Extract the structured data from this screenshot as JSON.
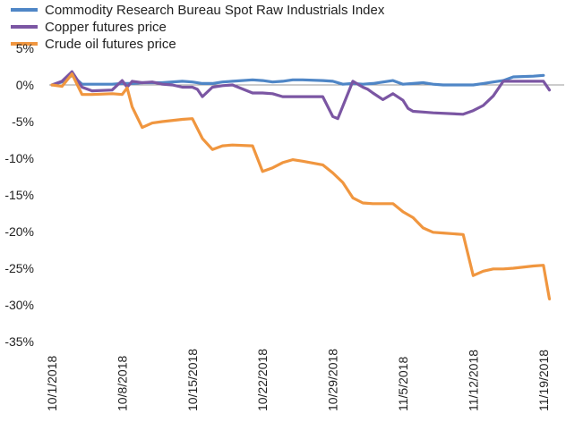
{
  "chart_data": {
    "type": "line",
    "title": "",
    "xlabel": "",
    "ylabel": "",
    "ylim": [
      -35,
      5
    ],
    "y_ticks": [
      5,
      0,
      -5,
      -10,
      -15,
      -20,
      -25,
      -30,
      -35
    ],
    "y_tick_labels": [
      "5%",
      "0%",
      "-5%",
      "-10%",
      "-15%",
      "-20%",
      "-25%",
      "-30%",
      "-35%"
    ],
    "x_tick_labels": [
      "10/1/2018",
      "10/8/2018",
      "10/15/2018",
      "10/22/2018",
      "10/29/2018",
      "11/5/2018",
      "11/12/2018",
      "11/19/2018"
    ],
    "x_tick_days": [
      0,
      7,
      14,
      21,
      28,
      35,
      42,
      49
    ],
    "x_range_days": [
      0,
      51.2
    ],
    "legend_position": "top-left",
    "gridlines": false,
    "series": [
      {
        "name": "Commodity Research Bureau Spot Raw Industrials Index",
        "color": "#4f86c6",
        "x": [
          0,
          1,
          2,
          3,
          4,
          6,
          7,
          8,
          9,
          10,
          11,
          13,
          14,
          15,
          16,
          17,
          18,
          20,
          21,
          22,
          23,
          24,
          25,
          27,
          28,
          29,
          30,
          31,
          32,
          34,
          35,
          36,
          37,
          38,
          39,
          41,
          42,
          43,
          44,
          45,
          46,
          48,
          49
        ],
        "y": [
          0,
          0.4,
          1.3,
          0.1,
          0.1,
          0.1,
          0.2,
          0.2,
          0.3,
          0.3,
          0.3,
          0.5,
          0.4,
          0.2,
          0.2,
          0.4,
          0.5,
          0.7,
          0.6,
          0.4,
          0.5,
          0.7,
          0.7,
          0.6,
          0.5,
          0.1,
          0.2,
          0.1,
          0.2,
          0.6,
          0.1,
          0.2,
          0.3,
          0.1,
          0,
          0,
          0,
          0.2,
          0.4,
          0.6,
          1.1,
          1.2,
          1.3
        ]
      },
      {
        "name": "Copper futures price",
        "color": "#7b56a3",
        "x": [
          0,
          1,
          2,
          3,
          4,
          6,
          7,
          7.5,
          8,
          9,
          10,
          11,
          12,
          13,
          14,
          14.5,
          15,
          16,
          17,
          18,
          20,
          21,
          22,
          23,
          24,
          25,
          27,
          28,
          28.5,
          29,
          30,
          31,
          31.5,
          32,
          33,
          34,
          35,
          35.5,
          36,
          37,
          38,
          41,
          42,
          43,
          44,
          45,
          46,
          48,
          49,
          49.6
        ],
        "y": [
          0,
          0.5,
          1.8,
          -0.3,
          -0.8,
          -0.7,
          0.6,
          -0.3,
          0.5,
          0.3,
          0.4,
          0.1,
          0,
          -0.3,
          -0.3,
          -0.6,
          -1.6,
          -0.3,
          -0.1,
          0,
          -1.1,
          -1.1,
          -1.2,
          -1.6,
          -1.6,
          -1.6,
          -1.6,
          -4.3,
          -4.6,
          -2.9,
          0.5,
          -0.3,
          -0.6,
          -1.1,
          -2,
          -1.2,
          -2.1,
          -3.2,
          -3.6,
          -3.7,
          -3.8,
          -4,
          -3.5,
          -2.8,
          -1.5,
          0.5,
          0.5,
          0.5,
          0.5,
          -0.7
        ]
      },
      {
        "name": "Crude oil futures price",
        "color": "#f0963f",
        "x": [
          0,
          1,
          2,
          3,
          4,
          6,
          7,
          7.5,
          8,
          9,
          10,
          11,
          13,
          14,
          15,
          16,
          17,
          18,
          20,
          21,
          22,
          23,
          24,
          25,
          27,
          28,
          29,
          30,
          31,
          32,
          34,
          35,
          35.5,
          36,
          37,
          38,
          39,
          41,
          42,
          43,
          44,
          45,
          46,
          48,
          49,
          49.6
        ],
        "y": [
          0,
          -0.2,
          1.5,
          -1.3,
          -1.3,
          -1.2,
          -1.3,
          -0.4,
          -3,
          -5.8,
          -5.2,
          -5,
          -4.7,
          -4.6,
          -7.3,
          -8.8,
          -8.3,
          -8.2,
          -8.3,
          -11.8,
          -11.3,
          -10.6,
          -10.2,
          -10.4,
          -10.9,
          -12,
          -13.3,
          -15.4,
          -16.1,
          -16.2,
          -16.2,
          -17.3,
          -17.7,
          -18.1,
          -19.5,
          -20.1,
          -20.2,
          -20.4,
          -26,
          -25.4,
          -25.1,
          -25.1,
          -25,
          -24.7,
          -24.6,
          -29.2
        ]
      }
    ]
  }
}
